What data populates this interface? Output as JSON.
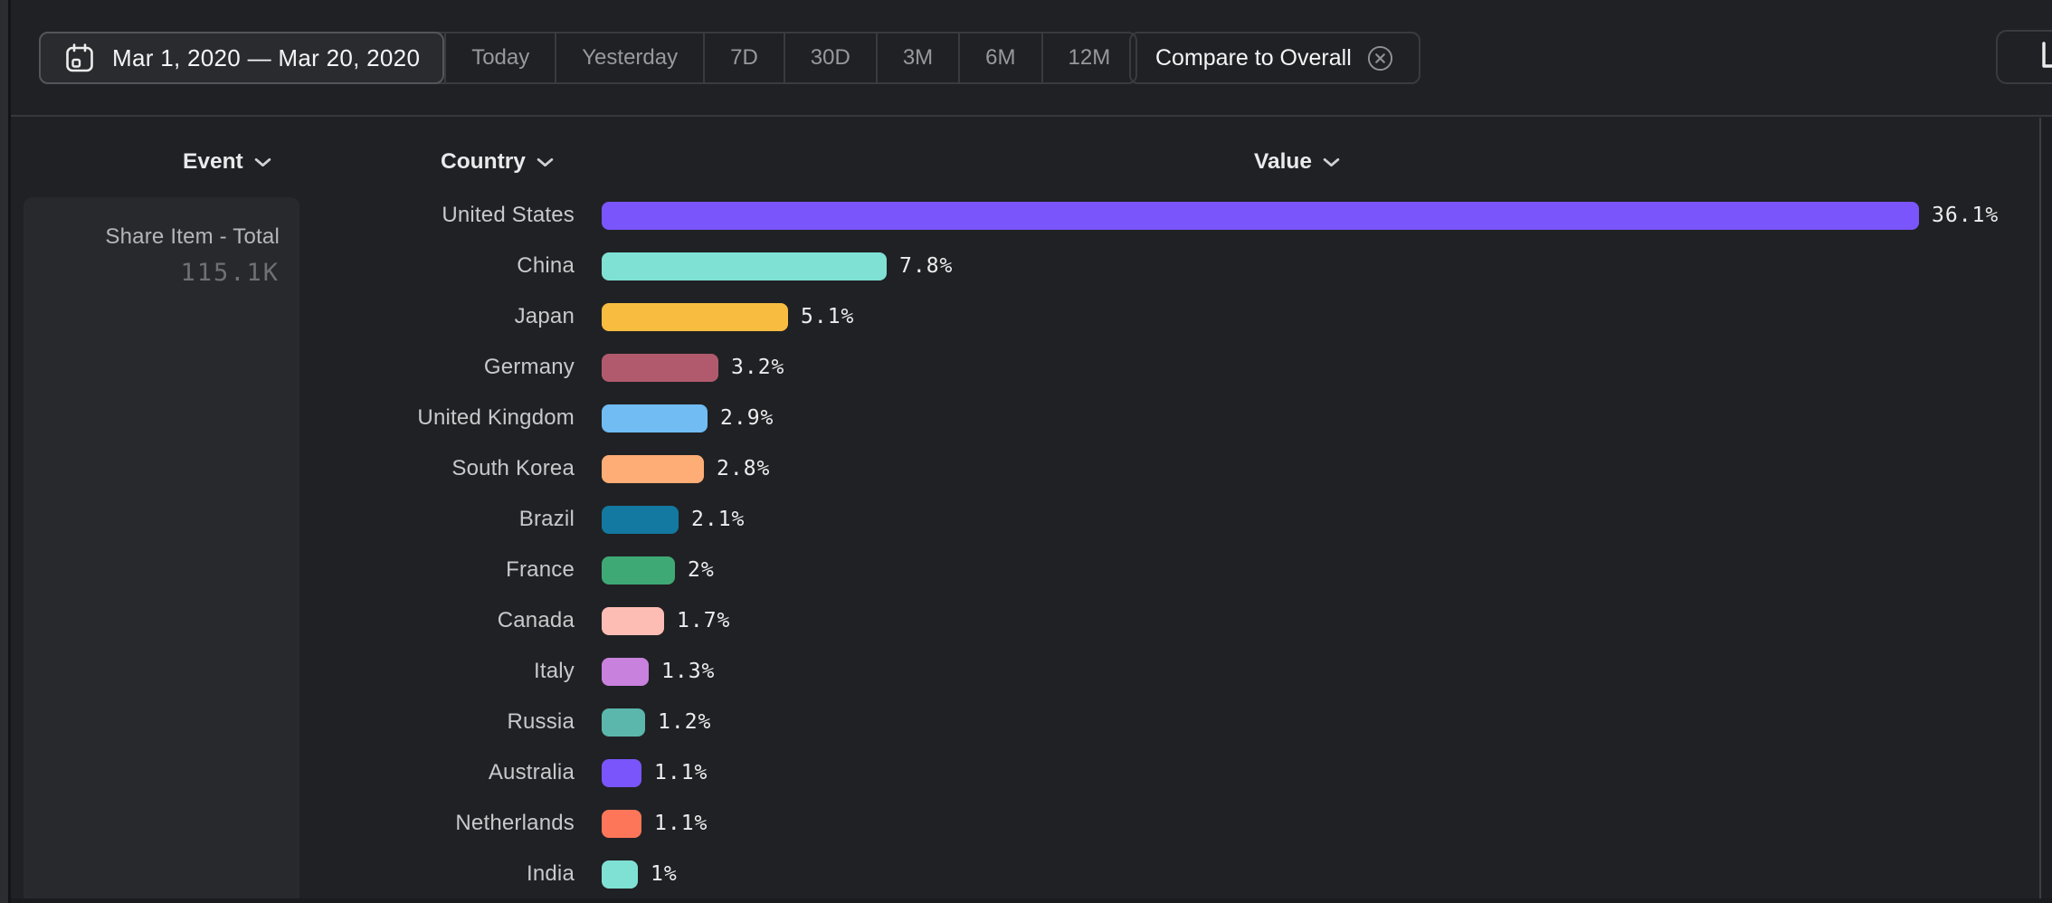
{
  "toolbar": {
    "date_range": "Mar 1, 2020 — Mar 20, 2020",
    "presets": [
      "Today",
      "Yesterday",
      "7D",
      "30D",
      "3M",
      "6M",
      "12M"
    ],
    "compare_label": "Compare to Overall"
  },
  "columns": {
    "event": "Event",
    "country": "Country",
    "value": "Value"
  },
  "event_panel": {
    "title": "Share Item - Total",
    "total": "115.1K"
  },
  "chart_data": {
    "type": "bar",
    "orientation": "horizontal",
    "group_by": "Country",
    "metric": "Share Item - Total",
    "categories": [
      "United States",
      "China",
      "Japan",
      "Germany",
      "United Kingdom",
      "South Korea",
      "Brazil",
      "France",
      "Canada",
      "Italy",
      "Russia",
      "Australia",
      "Netherlands",
      "India"
    ],
    "values": [
      36.1,
      7.8,
      5.1,
      3.2,
      2.9,
      2.8,
      2.1,
      2,
      1.7,
      1.3,
      1.2,
      1.1,
      1.1,
      1
    ],
    "value_labels": [
      "36.1%",
      "7.8%",
      "5.1%",
      "3.2%",
      "2.9%",
      "2.8%",
      "2.1%",
      "2%",
      "1.7%",
      "1.3%",
      "1.2%",
      "1.1%",
      "1.1%",
      "1%"
    ],
    "bar_colors": [
      "#7a55fb",
      "#7fe0d4",
      "#f8bc40",
      "#b15a6e",
      "#70bcf3",
      "#fdad75",
      "#1379a1",
      "#3fa975",
      "#fdbdb5",
      "#c981de",
      "#5bb7ab",
      "#7a55fb",
      "#fd7659",
      "#7fe0d4"
    ],
    "unit": "%",
    "xlim": [
      0,
      40
    ],
    "grid": false,
    "legend": false
  },
  "colors": {
    "background": "#202124",
    "panel": "#28292c",
    "border": "#3a3b3e",
    "accent": "#7a55fb"
  }
}
